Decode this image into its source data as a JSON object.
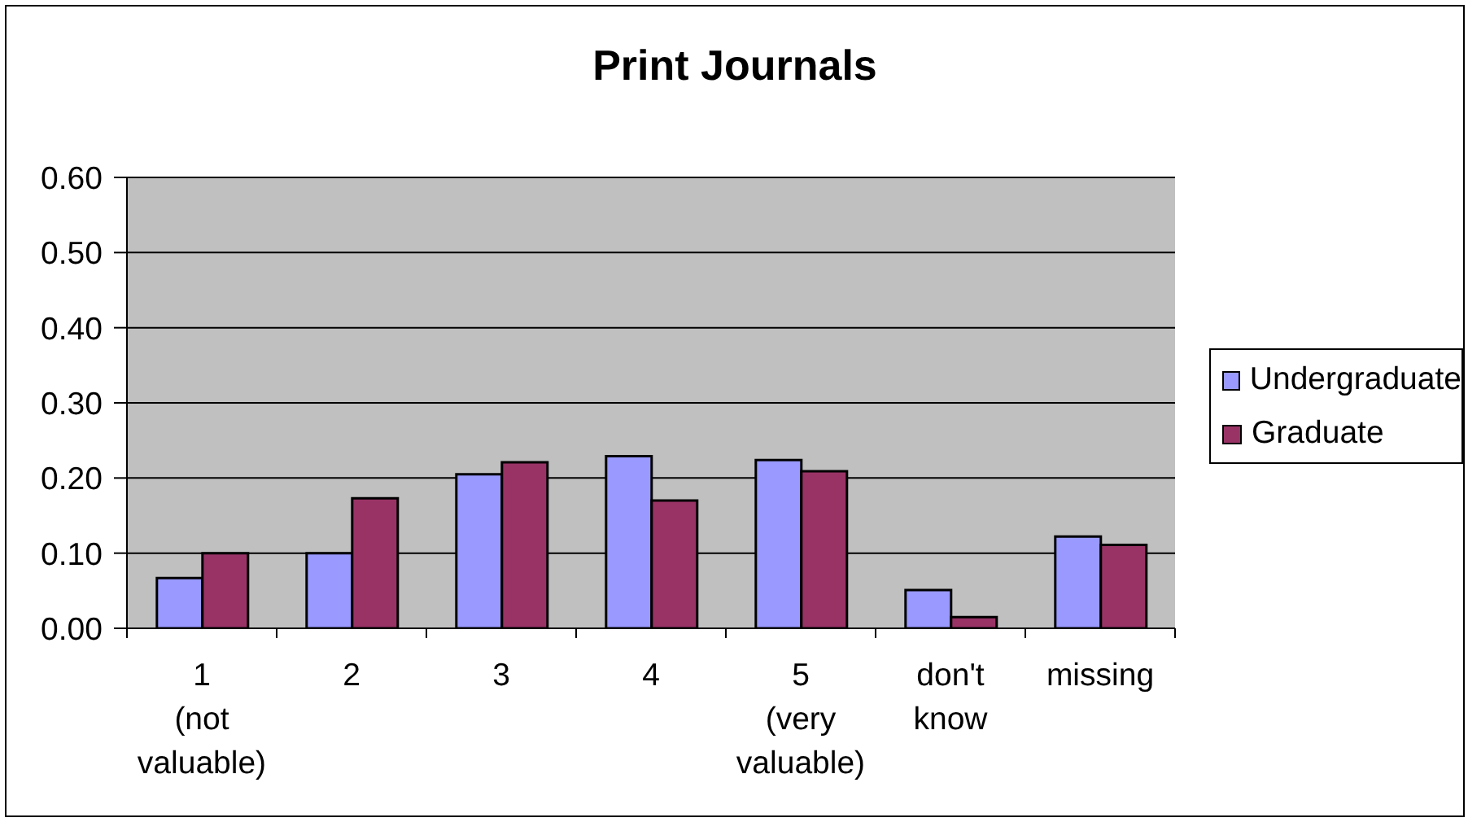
{
  "chart_data": {
    "type": "bar",
    "title": "Print Journals",
    "categories": [
      "1 (not valuable)",
      "2",
      "3",
      "4",
      "5 (very valuable)",
      "don't know",
      "missing"
    ],
    "series": [
      {
        "name": "Undergraduate",
        "color": "#9999ff",
        "values": [
          0.067,
          0.1,
          0.205,
          0.229,
          0.224,
          0.051,
          0.122
        ]
      },
      {
        "name": "Graduate",
        "color": "#993366",
        "values": [
          0.1,
          0.173,
          0.221,
          0.17,
          0.209,
          0.015,
          0.111
        ]
      }
    ],
    "ylim": [
      0,
      0.6
    ],
    "yticks": [
      {
        "value": 0,
        "label": "0.00"
      },
      {
        "value": 0.1,
        "label": "0.10"
      },
      {
        "value": 0.2,
        "label": "0.20"
      },
      {
        "value": 0.3,
        "label": "0.30"
      },
      {
        "value": 0.4,
        "label": "0.40"
      },
      {
        "value": 0.5,
        "label": "0.50"
      },
      {
        "value": 0.6,
        "label": "0.60"
      }
    ],
    "grid": "y",
    "legend": "right"
  }
}
